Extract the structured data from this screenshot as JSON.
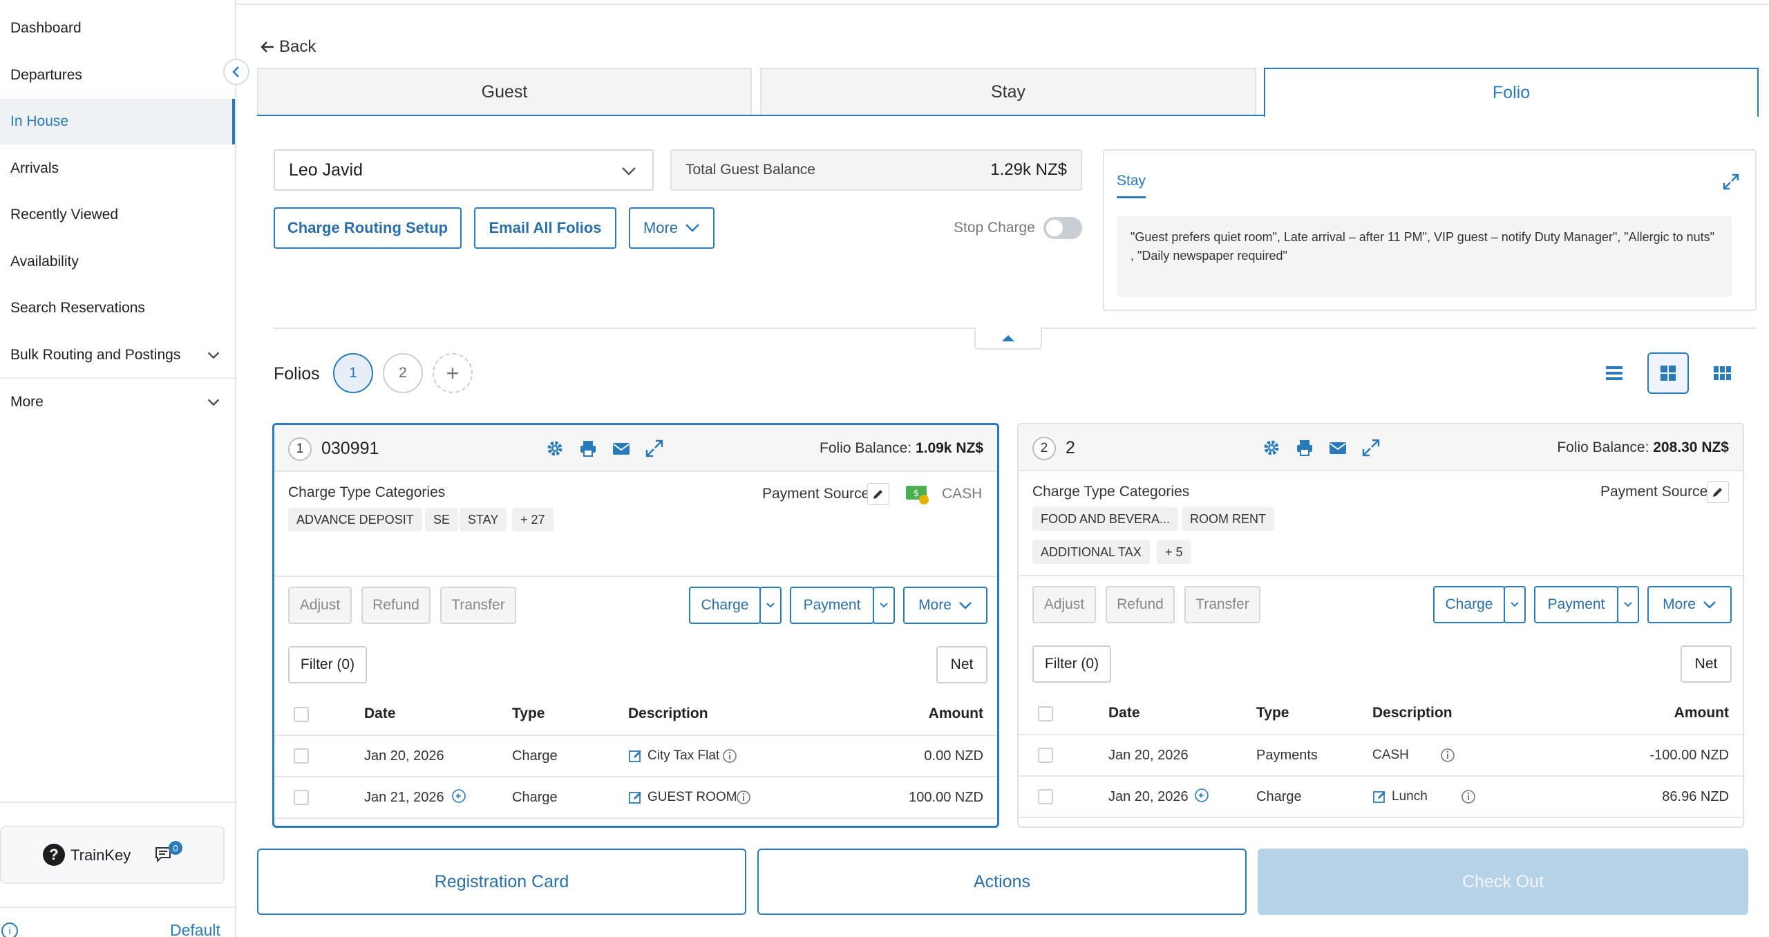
{
  "sidebar": {
    "items": [
      {
        "label": "Dashboard"
      },
      {
        "label": "Departures"
      },
      {
        "label": "In House"
      },
      {
        "label": "Arrivals"
      },
      {
        "label": "Recently Viewed"
      },
      {
        "label": "Availability"
      },
      {
        "label": "Search Reservations"
      },
      {
        "label": "Bulk Routing and Postings"
      },
      {
        "label": "More"
      }
    ],
    "active_item": "In House",
    "trainkey_label": "TrainKey",
    "message_count": "0",
    "default_label": "Default"
  },
  "header": {
    "back_label": "Back",
    "tabs": [
      {
        "label": "Guest"
      },
      {
        "label": "Stay"
      },
      {
        "label": "Folio"
      }
    ],
    "active_tab": "Folio"
  },
  "guest": {
    "name": "Leo Javid",
    "total_balance_label": "Total Guest Balance",
    "total_balance_value": "1.29k NZ$"
  },
  "actions": {
    "charge_routing": "Charge Routing Setup",
    "email_all": "Email All Folios",
    "more": "More",
    "stop_charge": "Stop Charge",
    "stop_charge_on": false
  },
  "stay_card": {
    "tab_label": "Stay",
    "notes": "\"Guest prefers quiet room\", Late arrival – after 11 PM\", VIP guest – notify Duty Manager\", \"Allergic to nuts\" , \"Daily newspaper required\""
  },
  "folios": {
    "label": "Folios",
    "tabs": [
      "1",
      "2"
    ],
    "add_label": "+",
    "active": "1",
    "view_mode": "grid-2"
  },
  "folio_cards": [
    {
      "number": "1",
      "name": "030991",
      "balance_label": "Folio Balance:",
      "balance_value": "1.09k NZ$",
      "ctc_label": "Charge Type Categories",
      "chips": [
        "ADVANCE DEPOSIT",
        "SE",
        "STAY",
        "+ 27"
      ],
      "payment_source_label": "Payment Source",
      "payment_source_value": "CASH",
      "buttons": {
        "adjust": "Adjust",
        "refund": "Refund",
        "transfer": "Transfer",
        "charge": "Charge",
        "payment": "Payment",
        "more": "More",
        "filter": "Filter (0)",
        "net": "Net"
      },
      "columns": [
        "Date",
        "Type",
        "Description",
        "Amount"
      ],
      "rows": [
        {
          "date": "Jan 20, 2026",
          "type": "Charge",
          "description": "City Tax Flat",
          "amount": "0.00 NZD"
        },
        {
          "date": "Jan 21, 2026",
          "type": "Charge",
          "description": "GUEST ROOM",
          "amount": "100.00 NZD"
        }
      ]
    },
    {
      "number": "2",
      "name": "2",
      "balance_label": "Folio Balance:",
      "balance_value": "208.30 NZ$",
      "ctc_label": "Charge Type Categories",
      "chips": [
        "FOOD AND BEVERA...",
        "ROOM RENT",
        "ADDITIONAL TAX",
        "+ 5"
      ],
      "payment_source_label": "Payment Source",
      "payment_source_value": "",
      "buttons": {
        "adjust": "Adjust",
        "refund": "Refund",
        "transfer": "Transfer",
        "charge": "Charge",
        "payment": "Payment",
        "more": "More",
        "filter": "Filter (0)",
        "net": "Net"
      },
      "columns": [
        "Date",
        "Type",
        "Description",
        "Amount"
      ],
      "rows": [
        {
          "date": "Jan 20, 2026",
          "type": "Payments",
          "description": "CASH",
          "amount": "-100.00 NZD"
        },
        {
          "date": "Jan 20, 2026",
          "type": "Charge",
          "description": "Lunch",
          "amount": "86.96 NZD"
        }
      ]
    }
  ],
  "bottom": {
    "registration_card": "Registration Card",
    "actions": "Actions",
    "check_out": "Check Out"
  },
  "colors": {
    "accent": "#2a7ab8",
    "disabled_button": "#b6d2e6"
  }
}
